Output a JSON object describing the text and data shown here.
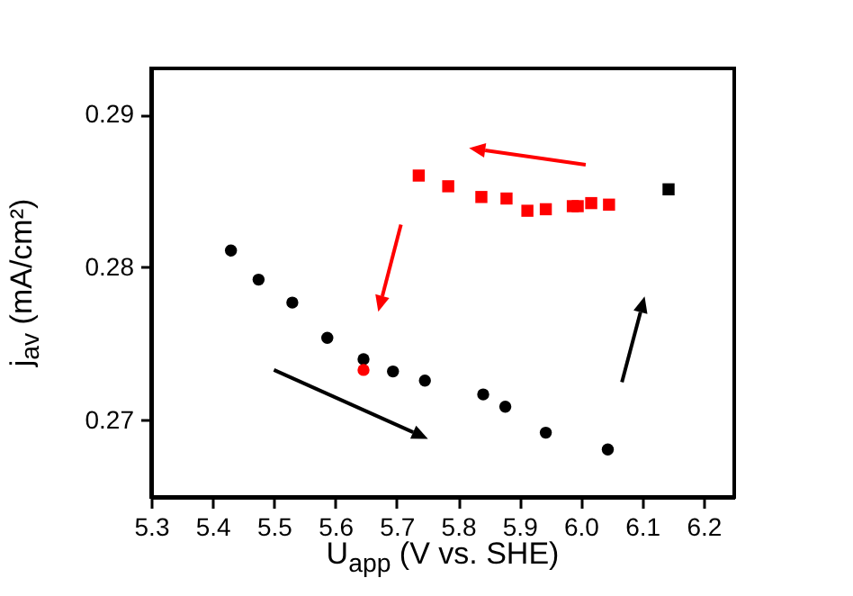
{
  "chart_data": {
    "type": "scatter",
    "xlabel": "U$_{app}$ (V vs. SHE)",
    "ylabel": "j$_{av}$ (mA/cm²)",
    "xlim": [
      5.3,
      6.25
    ],
    "ylim": [
      0.265,
      0.293
    ],
    "xticks": [
      5.3,
      5.4,
      5.5,
      5.6,
      5.7,
      5.8,
      5.9,
      {
        "value": 6,
        "label": "6.0"
      },
      6.1,
      6.2
    ],
    "yticks": [
      0.27,
      0.28,
      0.29
    ],
    "grid": false,
    "series": [
      {
        "color": "#000000",
        "marker": "circle",
        "x": [
          5.43,
          5.475,
          5.53,
          5.587,
          5.646,
          5.694,
          5.746,
          5.841,
          5.877,
          5.943,
          6.044
        ],
        "values": [
          0.2811,
          0.2792,
          0.2777,
          0.2754,
          0.274,
          0.2732,
          0.2726,
          0.2717,
          0.2709,
          0.2692,
          0.2681
        ]
      },
      {
        "color": "#ff0000",
        "marker": "circle",
        "x": [
          5.646
        ],
        "values": [
          0.2733
        ]
      },
      {
        "color": "#ff0000",
        "marker": "square",
        "x": [
          5.736,
          5.784,
          5.838,
          5.879,
          5.913,
          5.943,
          5.987,
          5.995,
          6.017,
          6.046
        ],
        "values": [
          0.286,
          0.2853,
          0.2846,
          0.2845,
          0.2837,
          0.2838,
          0.284,
          0.284,
          0.2842,
          0.2841
        ]
      },
      {
        "color": "#000000",
        "marker": "square",
        "x": [
          6.143
        ],
        "values": [
          0.2851
        ]
      }
    ]
  }
}
